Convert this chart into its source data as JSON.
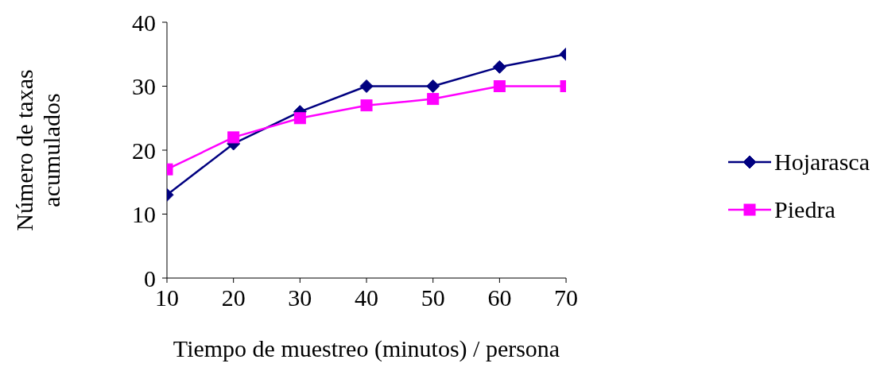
{
  "chart_data": {
    "type": "line",
    "xlabel": "Tiempo de muestreo (minutos) / persona",
    "ylabel": "Número de taxas\nacumulados",
    "x": [
      10,
      20,
      30,
      40,
      50,
      60,
      70
    ],
    "xlim": [
      10,
      70
    ],
    "xticks": [
      10,
      20,
      30,
      40,
      50,
      60,
      70
    ],
    "ylim": [
      0,
      40
    ],
    "yticks": [
      0,
      10,
      20,
      30,
      40
    ],
    "grid": false,
    "legend": "right",
    "series": [
      {
        "name": "Hojarasca",
        "color": "#000080",
        "marker": "diamond",
        "values": [
          13,
          21,
          26,
          30,
          30,
          33,
          35
        ]
      },
      {
        "name": "Piedra",
        "color": "#ff00ff",
        "marker": "square",
        "values": [
          17,
          22,
          25,
          27,
          28,
          30,
          30
        ]
      }
    ]
  }
}
